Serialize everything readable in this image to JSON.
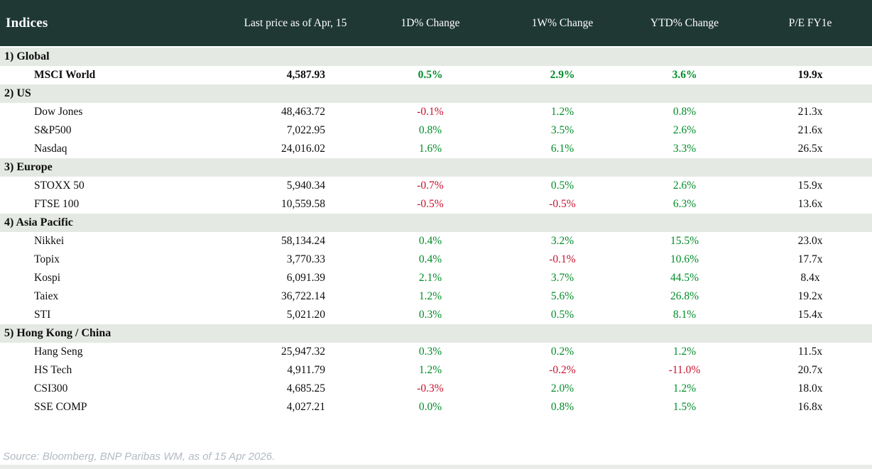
{
  "colors": {
    "header_bg": "#1f3833",
    "section_row_bg": "#e5e9e4",
    "positive": "#008c28",
    "negative": "#c8102e",
    "source_text": "#b2bac2",
    "bottom_strip": "#e9ece9"
  },
  "footer": {
    "source": "Source: Bloomberg, BNP Paribas WM, as of 15 Apr 2026."
  },
  "chart_data": {
    "type": "table",
    "title": "Indices",
    "columns": [
      "Indices",
      "Last price as of Apr, 15",
      "1D% Change",
      "1W% Change",
      "YTD% Change",
      "P/E FY1e"
    ],
    "sections": [
      {
        "label": "1) Global",
        "rows": [
          {
            "name": "MSCI World",
            "price": "4,587.93",
            "d1": "0.5%",
            "w1": "2.9%",
            "ytd": "3.6%",
            "pe": "19.9x",
            "bold": true
          }
        ]
      },
      {
        "label": "2) US",
        "rows": [
          {
            "name": "Dow Jones",
            "price": "48,463.72",
            "d1": "-0.1%",
            "w1": "1.2%",
            "ytd": "0.8%",
            "pe": "21.3x"
          },
          {
            "name": "S&P500",
            "price": "7,022.95",
            "d1": "0.8%",
            "w1": "3.5%",
            "ytd": "2.6%",
            "pe": "21.6x"
          },
          {
            "name": "Nasdaq",
            "price": "24,016.02",
            "d1": "1.6%",
            "w1": "6.1%",
            "ytd": "3.3%",
            "pe": "26.5x"
          }
        ]
      },
      {
        "label": "3) Europe",
        "rows": [
          {
            "name": "STOXX 50",
            "price": "5,940.34",
            "d1": "-0.7%",
            "w1": "0.5%",
            "ytd": "2.6%",
            "pe": "15.9x"
          },
          {
            "name": "FTSE 100",
            "price": "10,559.58",
            "d1": "-0.5%",
            "w1": "-0.5%",
            "ytd": "6.3%",
            "pe": "13.6x"
          }
        ]
      },
      {
        "label": "4) Asia Pacific",
        "rows": [
          {
            "name": "Nikkei",
            "price": "58,134.24",
            "d1": "0.4%",
            "w1": "3.2%",
            "ytd": "15.5%",
            "pe": "23.0x"
          },
          {
            "name": "Topix",
            "price": "3,770.33",
            "d1": "0.4%",
            "w1": "-0.1%",
            "ytd": "10.6%",
            "pe": "17.7x"
          },
          {
            "name": "Kospi",
            "price": "6,091.39",
            "d1": "2.1%",
            "w1": "3.7%",
            "ytd": "44.5%",
            "pe": "8.4x"
          },
          {
            "name": "Taiex",
            "price": "36,722.14",
            "d1": "1.2%",
            "w1": "5.6%",
            "ytd": "26.8%",
            "pe": "19.2x"
          },
          {
            "name": "STI",
            "price": "5,021.20",
            "d1": "0.3%",
            "w1": "0.5%",
            "ytd": "8.1%",
            "pe": "15.4x"
          }
        ]
      },
      {
        "label": "5) Hong Kong / China",
        "rows": [
          {
            "name": "Hang Seng",
            "price": "25,947.32",
            "d1": "0.3%",
            "w1": "0.2%",
            "ytd": "1.2%",
            "pe": "11.5x"
          },
          {
            "name": "HS Tech",
            "price": "4,911.79",
            "d1": "1.2%",
            "w1": "-0.2%",
            "ytd": "-11.0%",
            "pe": "20.7x"
          },
          {
            "name": "CSI300",
            "price": "4,685.25",
            "d1": "-0.3%",
            "w1": "2.0%",
            "ytd": "1.2%",
            "pe": "18.0x"
          },
          {
            "name": "SSE COMP",
            "price": "4,027.21",
            "d1": "0.0%",
            "w1": "0.8%",
            "ytd": "1.5%",
            "pe": "16.8x"
          }
        ]
      }
    ]
  }
}
